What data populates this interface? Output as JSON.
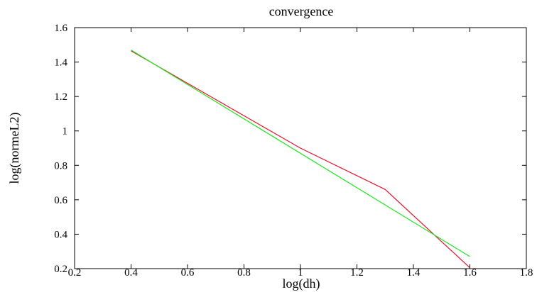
{
  "chart_data": {
    "type": "line",
    "title": "convergence",
    "xlabel": "log(dh)",
    "ylabel": "log(normeL2)",
    "xlim": [
      0.2,
      1.8
    ],
    "ylim": [
      0.2,
      1.6
    ],
    "x_ticks": [
      0.2,
      0.4,
      0.6,
      0.8,
      1.0,
      1.2,
      1.4,
      1.6,
      1.8
    ],
    "x_tick_labels": [
      "0.2",
      "0.4",
      "0.6",
      "0.8",
      "1",
      "1.2",
      "1.4",
      "1.6",
      "1.8"
    ],
    "y_ticks": [
      0.2,
      0.4,
      0.6,
      0.8,
      1.0,
      1.2,
      1.4,
      1.6
    ],
    "y_tick_labels": [
      "0.2",
      "0.4",
      "0.6",
      "0.8",
      "1",
      "1.2",
      "1.4",
      "1.6"
    ],
    "grid": false,
    "legend": "none",
    "series": [
      {
        "color": "#e8112d",
        "x": [
          0.4,
          1.0,
          1.3,
          1.6
        ],
        "y": [
          1.465,
          0.9,
          0.66,
          0.205
        ]
      },
      {
        "color": "#1ee61e",
        "x": [
          0.4,
          1.6
        ],
        "y": [
          1.47,
          0.27
        ]
      }
    ]
  }
}
